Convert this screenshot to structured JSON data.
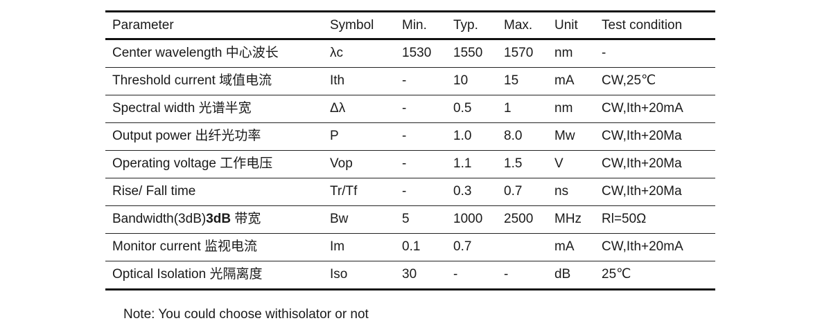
{
  "table": {
    "headers": [
      "Parameter",
      "Symbol",
      "Min.",
      "Typ.",
      "Max.",
      "Unit",
      "Test condition"
    ],
    "rows": [
      {
        "parameter": "Center wavelength 中心波长",
        "symbol": "λc",
        "min": "1530",
        "typ": "1550",
        "max": "1570",
        "unit": "nm",
        "test": "-"
      },
      {
        "parameter": "Threshold current 域值电流",
        "symbol": "Ith",
        "min": "-",
        "typ": "10",
        "max": "15",
        "unit": "mA",
        "test": "CW,25℃"
      },
      {
        "parameter": "Spectral width 光谱半宽",
        "symbol": "Δλ",
        "min": "-",
        "typ": "0.5",
        "max": "1",
        "unit": "nm",
        "test": "CW,Ith+20mA"
      },
      {
        "parameter": "Output power 出纤光功率",
        "symbol": "P",
        "min": "-",
        "typ": "1.0",
        "max": "8.0",
        "unit": "Mw",
        "test": "CW,Ith+20Ma"
      },
      {
        "parameter": "Operating voltage 工作电压",
        "symbol": "Vop",
        "min": "-",
        "typ": "1.1",
        "max": "1.5",
        "unit": "V",
        "test": "CW,Ith+20Ma"
      },
      {
        "parameter": "Rise/ Fall time",
        "symbol": "Tr/Tf",
        "min": "-",
        "typ": "0.3",
        "max": "0.7",
        "unit": "ns",
        "test": "CW,Ith+20Ma"
      },
      {
        "parameter_a": "Bandwidth(3dB)",
        "parameter_b": "3dB",
        "parameter_c": " 带宽",
        "symbol": "Bw",
        "min": "5",
        "typ": "1000",
        "max": "2500",
        "unit": "MHz",
        "test": "Rl=50Ω"
      },
      {
        "parameter": "Monitor current 监视电流",
        "symbol": "Im",
        "min": "0.1",
        "typ": "0.7",
        "max": "",
        "unit": "mA",
        "test": "CW,Ith+20mA"
      },
      {
        "parameter": "Optical Isolation 光隔离度",
        "symbol": "Iso",
        "min": "30",
        "typ": "-",
        "max": "-",
        "unit": "dB",
        "test": "25℃"
      }
    ]
  },
  "note": "Note: You could choose withisolator or not"
}
